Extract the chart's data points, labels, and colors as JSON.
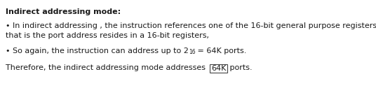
{
  "title": "Indirect addressing mode:",
  "bullet1_line1": "• In indirect addressing , the instruction references one of the 16-bit general purpose registers",
  "bullet1_line2": "that is the port address resides in a 16-bit registers,",
  "bullet2_pre": "• So again, the instruction can address up to 2",
  "bullet2_sup": "16",
  "bullet2_post": " = 64K ports.",
  "last_line_pre": "Therefore, the indirect addressing mode addresses  ",
  "last_line_box": "64K",
  "last_line_post": " ports.",
  "bg_color": "#ffffff",
  "text_color": "#1a1a1a",
  "font_size": 8.0,
  "sup_font_size": 5.5
}
